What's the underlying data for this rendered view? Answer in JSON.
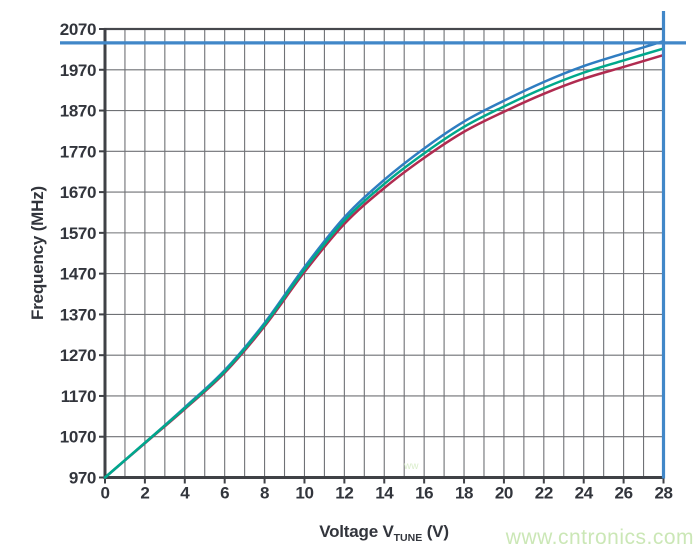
{
  "page": {
    "background": "#ffffff"
  },
  "axes": {
    "y_title": "Frequency (MHz)",
    "x_title": {
      "prefix": "Voltage V",
      "subscript": "TUNE",
      "suffix": " (V)"
    }
  },
  "watermark": {
    "text": "www.cntronics.com",
    "color": "#cbe7b6"
  },
  "faint_mark": {
    "text": "ww",
    "color": "#d6ecc6"
  },
  "colors": {
    "grid": "#6f7175",
    "border": "#46484d",
    "axis_emphasis": "#3f4146",
    "tick_text": "#32353c",
    "crosshair_blue": "#4187c8"
  },
  "chart_data": {
    "type": "line",
    "title": "",
    "xlabel": "Voltage V_TUNE (V)",
    "ylabel": "Frequency (MHz)",
    "xlim": [
      0,
      28
    ],
    "ylim": [
      970,
      2070
    ],
    "grid": true,
    "x_grid_step": 1,
    "y_grid_step": 100,
    "x_ticks": [
      0,
      2,
      4,
      6,
      8,
      10,
      12,
      14,
      16,
      18,
      20,
      22,
      24,
      26,
      28
    ],
    "y_ticks": [
      970,
      1070,
      1170,
      1270,
      1370,
      1470,
      1570,
      1670,
      1770,
      1870,
      1970,
      2070
    ],
    "legend": "none",
    "x": [
      0,
      2,
      4,
      6,
      8,
      10,
      12,
      14,
      16,
      18,
      20,
      22,
      24,
      26,
      28
    ],
    "series": [
      {
        "name": "red-curve",
        "color": "#b02b50",
        "values": [
          970,
          1054,
          1138,
          1227,
          1341,
          1474,
          1592,
          1680,
          1754,
          1818,
          1867,
          1911,
          1948,
          1977,
          2006
        ]
      },
      {
        "name": "blue-curve",
        "color": "#2f7dc1",
        "values": [
          970,
          1055,
          1142,
          1233,
          1349,
          1486,
          1608,
          1700,
          1777,
          1843,
          1894,
          1940,
          1979,
          2010,
          2040
        ]
      },
      {
        "name": "green-curve",
        "color": "#00a88b",
        "values": [
          970,
          1055,
          1140,
          1230,
          1345,
          1480,
          1600,
          1690,
          1765,
          1830,
          1880,
          1925,
          1963,
          1993,
          2022
        ]
      }
    ],
    "crosshair_marker": {
      "x": 28,
      "y": 2036,
      "color": "#4187c8"
    }
  }
}
